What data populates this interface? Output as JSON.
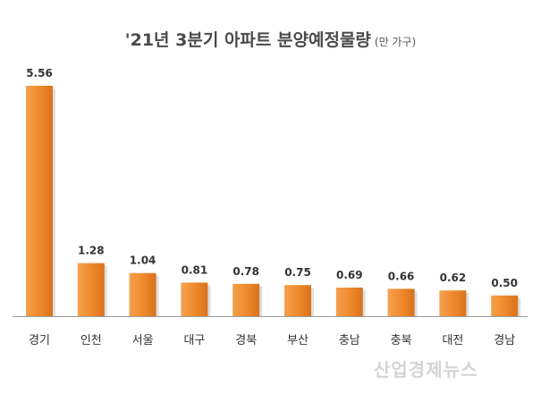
{
  "chart_data": {
    "type": "bar",
    "title": "'21년 3분기 아파트 분양예정물량",
    "subtitle": "(만 가구)",
    "categories": [
      "경기",
      "인천",
      "서울",
      "대구",
      "경북",
      "부산",
      "충남",
      "충북",
      "대전",
      "경남"
    ],
    "values": [
      5.56,
      1.28,
      1.04,
      0.81,
      0.78,
      0.75,
      0.69,
      0.66,
      0.62,
      0.5
    ],
    "value_labels": [
      "5.56",
      "1.28",
      "1.04",
      "0.81",
      "0.78",
      "0.75",
      "0.69",
      "0.66",
      "0.62",
      "0.50"
    ],
    "ylim": [
      0,
      5.56
    ],
    "grid": false,
    "legend": "none",
    "bar_color": "#f08a2c"
  },
  "watermark": "산업경제뉴스"
}
